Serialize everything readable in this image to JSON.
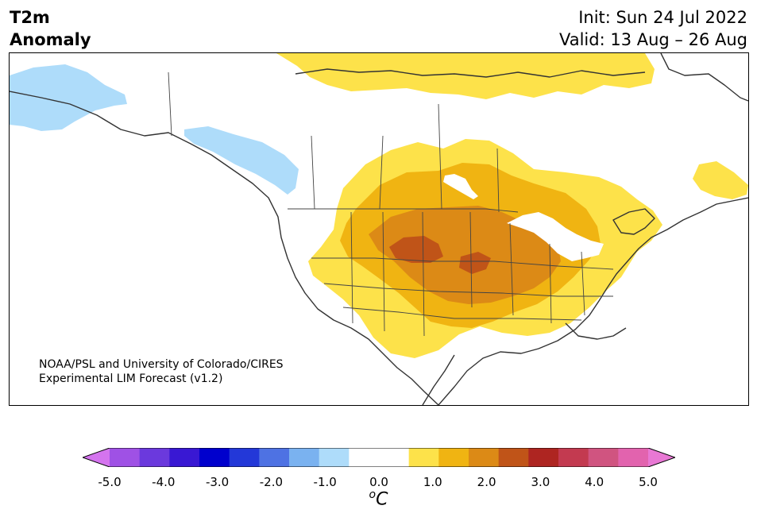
{
  "title": {
    "variable": "T2m",
    "field": "Anomaly"
  },
  "header": {
    "init": "Init: Sun 24 Jul 2022",
    "valid": "Valid: 13 Aug – 26 Aug"
  },
  "credit": {
    "line1": "NOAA/PSL and University of Colorado/CIRES",
    "line2": "Experimental LIM Forecast (v1.2)"
  },
  "colorbar": {
    "colors": [
      "#d474ee",
      "#9f51e5",
      "#6b39dd",
      "#3918d3",
      "#0000cd",
      "#2338d8",
      "#4e72e3",
      "#7ab2f0",
      "#aedcfa",
      "#ffffff",
      "#ffffff",
      "#fde24a",
      "#f0b412",
      "#dc8a16",
      "#c05418",
      "#ae2521",
      "#c33a50",
      "#d05480",
      "#e263ae",
      "#e878d4"
    ],
    "ticks": [
      "-5.0",
      "-4.0",
      "-3.0",
      "-2.0",
      "-1.0",
      "0.0",
      "1.0",
      "2.0",
      "3.0",
      "4.0",
      "5.0"
    ],
    "unit_sup": "o",
    "unit": "C"
  },
  "map": {
    "colors": {
      "light_yellow": "#fde24a",
      "yellow": "#f0b412",
      "orange": "#dc8a16",
      "dark_orange": "#c05418",
      "light_blue": "#aedcfa",
      "coast": "#333333"
    }
  }
}
